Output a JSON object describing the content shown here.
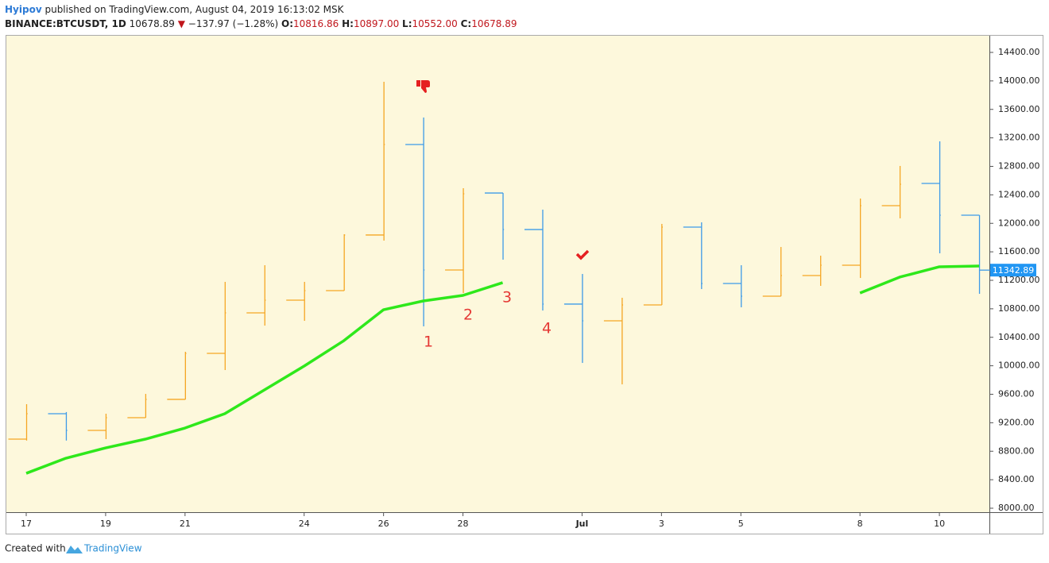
{
  "header": {
    "author": "Hyipov",
    "published": "published on TradingView.com, August 04, 2019 16:13:02 MSK",
    "symbol": "BINANCE:BTCUSDT, 1D",
    "last": "10678.89",
    "change": "−137.97 (−1.28%)",
    "o_label": "O:",
    "o": "10816.86",
    "h_label": "H:",
    "h": "10897.00",
    "l_label": "L:",
    "l": "10552.00",
    "c_label": "C:",
    "c": "10678.89"
  },
  "footer": {
    "created": "Created with",
    "brand": "TradingView"
  },
  "chart_data": {
    "type": "ohlc",
    "categories": [
      "17",
      null,
      "19",
      null,
      "21",
      null,
      null,
      "24",
      null,
      "26",
      null,
      "28",
      null,
      null,
      "Jul",
      null,
      "3",
      null,
      "5",
      null,
      null,
      "8",
      null,
      "10",
      null
    ],
    "open": [
      8970,
      9327,
      9093,
      9271,
      9528,
      10174,
      10743,
      10921,
      11055,
      11836,
      13107,
      11345,
      12426,
      11913,
      10866,
      10631,
      10854,
      11947,
      11155,
      10977,
      11267,
      11412,
      12248,
      12560,
      12114
    ],
    "high": [
      9461,
      9350,
      9327,
      9605,
      10196,
      11178,
      11412,
      11178,
      11847,
      13987,
      13486,
      12493,
      12426,
      12192,
      11289,
      10955,
      11992,
      12014,
      11412,
      11668,
      11546,
      12348,
      12806,
      13151,
      12114
    ],
    "low": [
      8950,
      8950,
      8970,
      9271,
      9528,
      9940,
      10564,
      10631,
      11055,
      11757,
      10553,
      11022,
      11490,
      10776,
      10040,
      9739,
      10854,
      11077,
      10821,
      10977,
      11122,
      11233,
      12070,
      11579,
      11010
    ],
    "close": [
      9327,
      9093,
      9271,
      9528,
      10174,
      10743,
      10921,
      11055,
      11836,
      13107,
      11345,
      12415,
      11913,
      10866,
      10631,
      10854,
      11947,
      11155,
      10977,
      11267,
      11412,
      12248,
      12549,
      12114,
      11342.89
    ],
    "up_color": "#f5a623",
    "down_color": "#3d9ae8",
    "ma": {
      "color": "#2ee81b",
      "values": [
        8490,
        8702,
        8847,
        8970,
        9126,
        9327,
        9661,
        9996,
        10352,
        10787,
        10910,
        10988,
        11167,
        null,
        null,
        null,
        null,
        null,
        null,
        null,
        null,
        11022,
        11245,
        11390,
        11401
      ]
    },
    "annotations": [
      "1",
      "2",
      "3",
      "4"
    ],
    "ylim": [
      8000,
      14400
    ],
    "yticks": [
      {
        "value": 8000,
        "label": "8000.00"
      },
      {
        "value": 8400,
        "label": "8400.00"
      },
      {
        "value": 8800,
        "label": "8800.00"
      },
      {
        "value": 9200,
        "label": "9200.00"
      },
      {
        "value": 9600,
        "label": "9600.00"
      },
      {
        "value": 10000,
        "label": "10000.00"
      },
      {
        "value": 10400,
        "label": "10400.00"
      },
      {
        "value": 10800,
        "label": "10800.00"
      },
      {
        "value": 11200,
        "label": "11200.00"
      },
      {
        "value": 11600,
        "label": "11600.00"
      },
      {
        "value": 12000,
        "label": "12000.00"
      },
      {
        "value": 12400,
        "label": "12400.00"
      },
      {
        "value": 12800,
        "label": "12800.00"
      },
      {
        "value": 13200,
        "label": "13200.00"
      },
      {
        "value": 13600,
        "label": "13600.00"
      },
      {
        "value": 14000,
        "label": "14000.00"
      },
      {
        "value": 14400,
        "label": "14400.00"
      }
    ]
  }
}
